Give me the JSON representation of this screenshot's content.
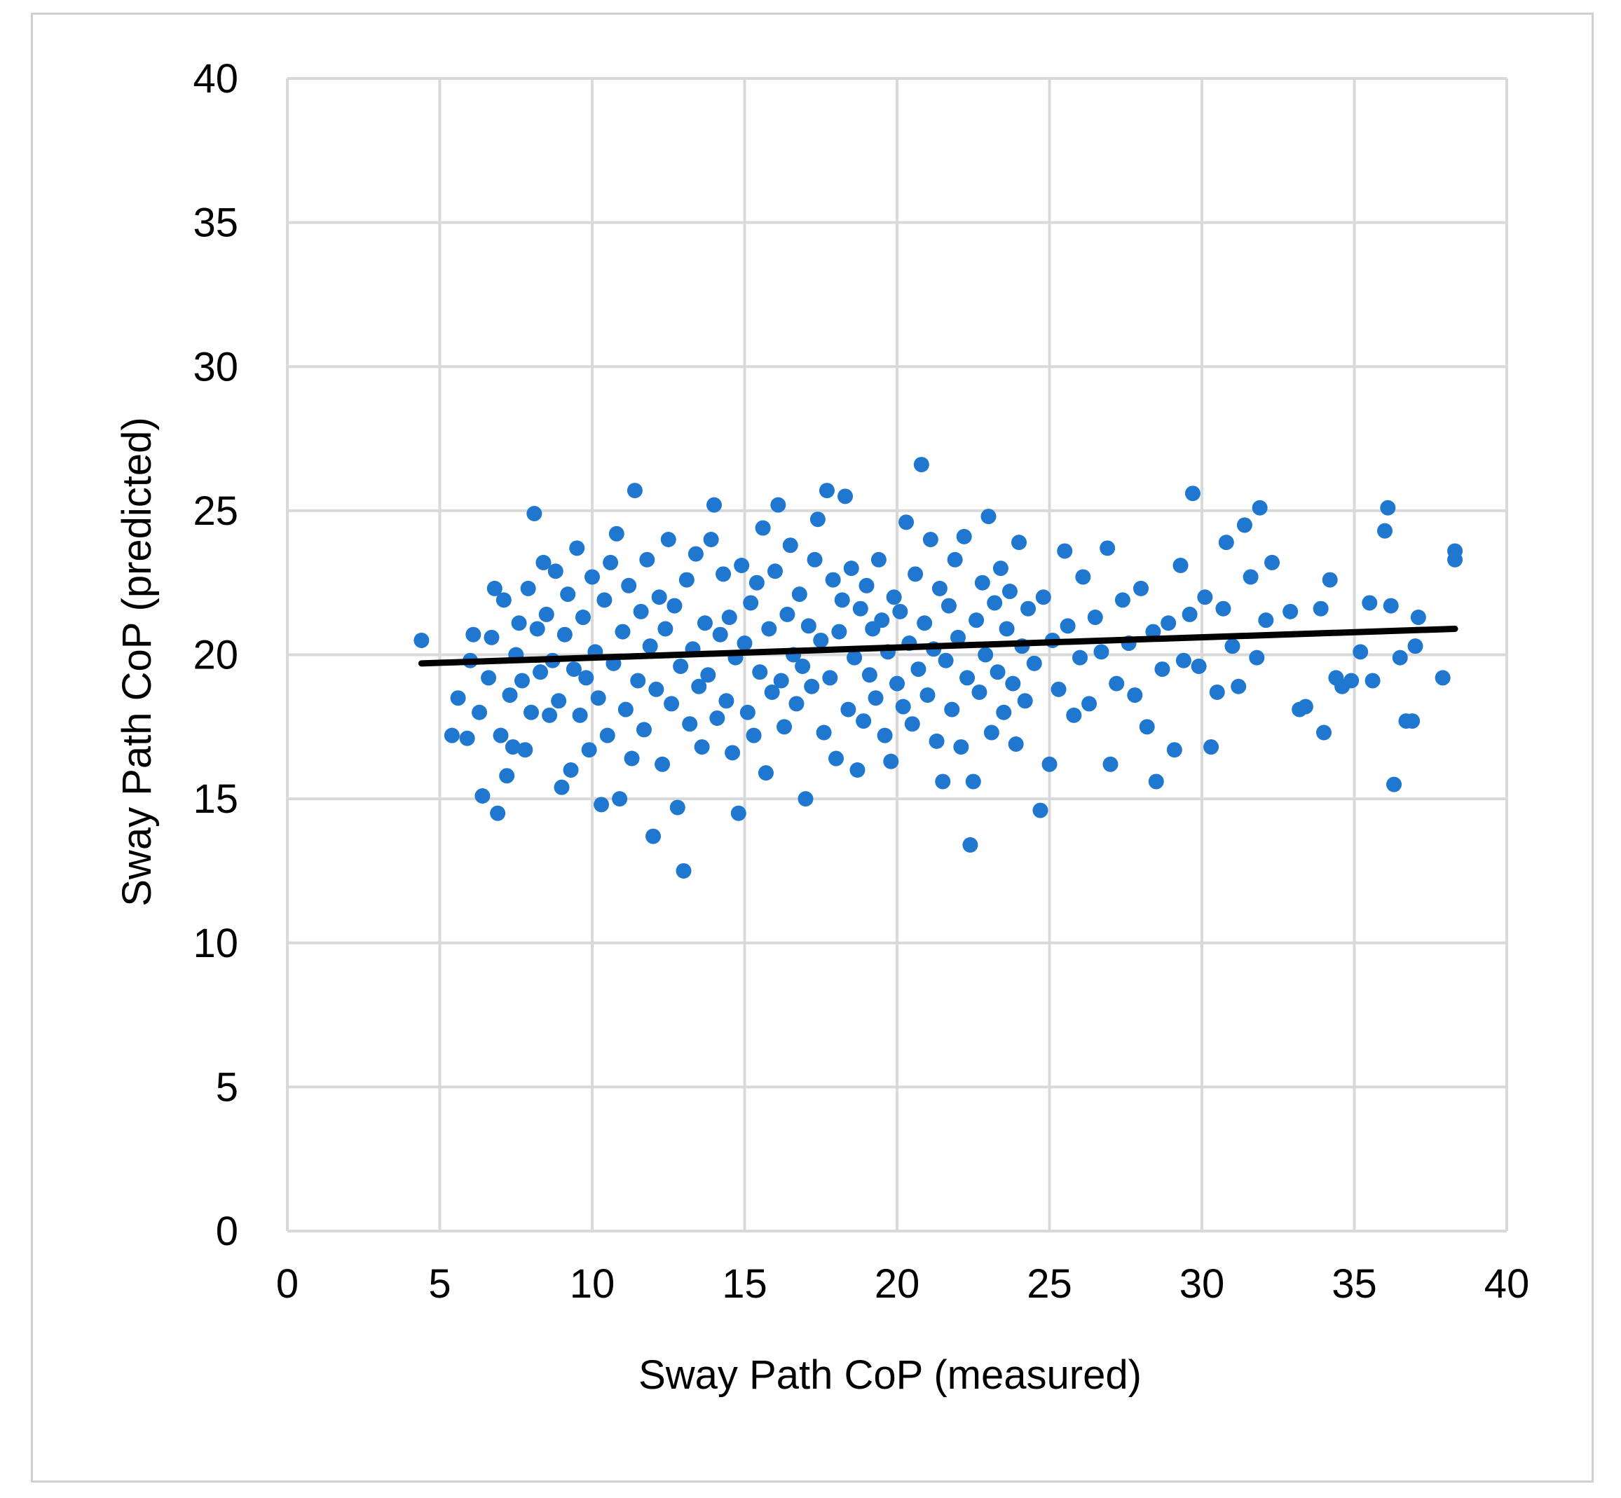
{
  "chart_data": {
    "type": "scatter",
    "title": "",
    "xlabel": "Sway Path CoP (measured)",
    "ylabel": "Sway Path CoP (predicted)",
    "xlim": [
      0,
      40
    ],
    "ylim": [
      0,
      40
    ],
    "xticks": [
      0,
      5,
      10,
      15,
      20,
      25,
      30,
      35,
      40
    ],
    "yticks": [
      0,
      5,
      10,
      15,
      20,
      25,
      30,
      35,
      40
    ],
    "grid": true,
    "legend": "none",
    "series": [
      {
        "marker_color": "#1f77d0",
        "points": [
          [
            4.4,
            20.5
          ],
          [
            5.4,
            17.2
          ],
          [
            5.6,
            18.5
          ],
          [
            5.9,
            17.1
          ],
          [
            6.0,
            19.8
          ],
          [
            6.1,
            20.7
          ],
          [
            6.3,
            18.0
          ],
          [
            6.4,
            15.1
          ],
          [
            6.6,
            19.2
          ],
          [
            6.7,
            20.6
          ],
          [
            6.8,
            22.3
          ],
          [
            6.9,
            14.5
          ],
          [
            7.0,
            17.2
          ],
          [
            7.1,
            21.9
          ],
          [
            7.2,
            15.8
          ],
          [
            7.3,
            18.6
          ],
          [
            7.4,
            16.8
          ],
          [
            7.5,
            20.0
          ],
          [
            7.6,
            21.1
          ],
          [
            7.7,
            19.1
          ],
          [
            7.8,
            16.7
          ],
          [
            7.9,
            22.3
          ],
          [
            8.0,
            18.0
          ],
          [
            8.1,
            24.9
          ],
          [
            8.2,
            20.9
          ],
          [
            8.3,
            19.4
          ],
          [
            8.4,
            23.2
          ],
          [
            8.5,
            21.4
          ],
          [
            8.6,
            17.9
          ],
          [
            8.7,
            19.8
          ],
          [
            8.8,
            22.9
          ],
          [
            8.9,
            18.4
          ],
          [
            9.0,
            15.4
          ],
          [
            9.1,
            20.7
          ],
          [
            9.2,
            22.1
          ],
          [
            9.3,
            16.0
          ],
          [
            9.4,
            19.5
          ],
          [
            9.5,
            23.7
          ],
          [
            9.6,
            17.9
          ],
          [
            9.7,
            21.3
          ],
          [
            9.8,
            19.2
          ],
          [
            9.9,
            16.7
          ],
          [
            10.0,
            22.7
          ],
          [
            10.1,
            20.1
          ],
          [
            10.2,
            18.5
          ],
          [
            10.3,
            14.8
          ],
          [
            10.4,
            21.9
          ],
          [
            10.5,
            17.2
          ],
          [
            10.6,
            23.2
          ],
          [
            10.7,
            19.7
          ],
          [
            10.8,
            24.2
          ],
          [
            10.9,
            15.0
          ],
          [
            11.0,
            20.8
          ],
          [
            11.1,
            18.1
          ],
          [
            11.2,
            22.4
          ],
          [
            11.3,
            16.4
          ],
          [
            11.4,
            25.7
          ],
          [
            11.5,
            19.1
          ],
          [
            11.6,
            21.5
          ],
          [
            11.7,
            17.4
          ],
          [
            11.8,
            23.3
          ],
          [
            11.9,
            20.3
          ],
          [
            12.0,
            13.7
          ],
          [
            12.1,
            18.8
          ],
          [
            12.2,
            22.0
          ],
          [
            12.3,
            16.2
          ],
          [
            12.4,
            20.9
          ],
          [
            12.5,
            24.0
          ],
          [
            12.6,
            18.3
          ],
          [
            12.7,
            21.7
          ],
          [
            12.8,
            14.7
          ],
          [
            12.9,
            19.6
          ],
          [
            13.0,
            12.5
          ],
          [
            13.1,
            22.6
          ],
          [
            13.2,
            17.6
          ],
          [
            13.3,
            20.2
          ],
          [
            13.4,
            23.5
          ],
          [
            13.5,
            18.9
          ],
          [
            13.6,
            16.8
          ],
          [
            13.7,
            21.1
          ],
          [
            13.8,
            19.3
          ],
          [
            13.9,
            24.0
          ],
          [
            14.0,
            25.2
          ],
          [
            14.1,
            17.8
          ],
          [
            14.2,
            20.7
          ],
          [
            14.3,
            22.8
          ],
          [
            14.4,
            18.4
          ],
          [
            14.5,
            21.3
          ],
          [
            14.6,
            16.6
          ],
          [
            14.7,
            19.9
          ],
          [
            14.8,
            14.5
          ],
          [
            14.9,
            23.1
          ],
          [
            15.0,
            20.4
          ],
          [
            15.1,
            18.0
          ],
          [
            15.2,
            21.8
          ],
          [
            15.3,
            17.2
          ],
          [
            15.4,
            22.5
          ],
          [
            15.5,
            19.4
          ],
          [
            15.6,
            24.4
          ],
          [
            15.7,
            15.9
          ],
          [
            15.8,
            20.9
          ],
          [
            15.9,
            18.7
          ],
          [
            16.0,
            22.9
          ],
          [
            16.1,
            25.2
          ],
          [
            16.2,
            19.1
          ],
          [
            16.3,
            17.5
          ],
          [
            16.4,
            21.4
          ],
          [
            16.5,
            23.8
          ],
          [
            16.6,
            20.0
          ],
          [
            16.7,
            18.3
          ],
          [
            16.8,
            22.1
          ],
          [
            16.9,
            19.6
          ],
          [
            17.0,
            15.0
          ],
          [
            17.1,
            21.0
          ],
          [
            17.2,
            18.9
          ],
          [
            17.3,
            23.3
          ],
          [
            17.4,
            24.7
          ],
          [
            17.5,
            20.5
          ],
          [
            17.6,
            17.3
          ],
          [
            17.7,
            25.7
          ],
          [
            17.8,
            19.2
          ],
          [
            17.9,
            22.6
          ],
          [
            18.0,
            16.4
          ],
          [
            18.1,
            20.8
          ],
          [
            18.2,
            21.9
          ],
          [
            18.3,
            25.5
          ],
          [
            18.4,
            18.1
          ],
          [
            18.5,
            23.0
          ],
          [
            18.6,
            19.9
          ],
          [
            18.7,
            16.0
          ],
          [
            18.8,
            21.6
          ],
          [
            18.9,
            17.7
          ],
          [
            19.0,
            22.4
          ],
          [
            19.1,
            19.3
          ],
          [
            19.2,
            20.9
          ],
          [
            19.3,
            18.5
          ],
          [
            19.4,
            23.3
          ],
          [
            19.5,
            21.2
          ],
          [
            19.6,
            17.2
          ],
          [
            19.7,
            20.1
          ],
          [
            19.8,
            16.3
          ],
          [
            19.9,
            22.0
          ],
          [
            20.0,
            19.0
          ],
          [
            20.1,
            21.5
          ],
          [
            20.2,
            18.2
          ],
          [
            20.3,
            24.6
          ],
          [
            20.4,
            20.4
          ],
          [
            20.5,
            17.6
          ],
          [
            20.6,
            22.8
          ],
          [
            20.7,
            19.5
          ],
          [
            20.8,
            26.6
          ],
          [
            20.9,
            21.1
          ],
          [
            21.0,
            18.6
          ],
          [
            21.1,
            24.0
          ],
          [
            21.2,
            20.2
          ],
          [
            21.3,
            17.0
          ],
          [
            21.4,
            22.3
          ],
          [
            21.5,
            15.6
          ],
          [
            21.6,
            19.8
          ],
          [
            21.7,
            21.7
          ],
          [
            21.8,
            18.1
          ],
          [
            21.9,
            23.3
          ],
          [
            22.0,
            20.6
          ],
          [
            22.1,
            16.8
          ],
          [
            22.2,
            24.1
          ],
          [
            22.3,
            19.2
          ],
          [
            22.4,
            13.4
          ],
          [
            22.5,
            15.6
          ],
          [
            22.6,
            21.2
          ],
          [
            22.7,
            18.7
          ],
          [
            22.8,
            22.5
          ],
          [
            22.9,
            20.0
          ],
          [
            23.0,
            24.8
          ],
          [
            23.1,
            17.3
          ],
          [
            23.2,
            21.8
          ],
          [
            23.3,
            19.4
          ],
          [
            23.4,
            23.0
          ],
          [
            23.5,
            18.0
          ],
          [
            23.6,
            20.9
          ],
          [
            23.7,
            22.2
          ],
          [
            23.8,
            19.0
          ],
          [
            23.9,
            16.9
          ],
          [
            24.0,
            23.9
          ],
          [
            24.1,
            20.3
          ],
          [
            24.2,
            18.4
          ],
          [
            24.3,
            21.6
          ],
          [
            24.5,
            19.7
          ],
          [
            24.7,
            14.6
          ],
          [
            24.8,
            22.0
          ],
          [
            25.0,
            16.2
          ],
          [
            25.1,
            20.5
          ],
          [
            25.3,
            18.8
          ],
          [
            25.5,
            23.6
          ],
          [
            25.6,
            21.0
          ],
          [
            25.8,
            17.9
          ],
          [
            26.0,
            19.9
          ],
          [
            26.1,
            22.7
          ],
          [
            26.3,
            18.3
          ],
          [
            26.5,
            21.3
          ],
          [
            26.7,
            20.1
          ],
          [
            26.9,
            23.7
          ],
          [
            27.0,
            16.2
          ],
          [
            27.2,
            19.0
          ],
          [
            27.4,
            21.9
          ],
          [
            27.6,
            20.4
          ],
          [
            27.8,
            18.6
          ],
          [
            28.0,
            22.3
          ],
          [
            28.2,
            17.5
          ],
          [
            28.4,
            20.8
          ],
          [
            28.5,
            15.6
          ],
          [
            28.7,
            19.5
          ],
          [
            28.9,
            21.1
          ],
          [
            29.1,
            16.7
          ],
          [
            29.3,
            23.1
          ],
          [
            29.4,
            19.8
          ],
          [
            29.6,
            21.4
          ],
          [
            29.7,
            25.6
          ],
          [
            29.9,
            19.6
          ],
          [
            30.1,
            22.0
          ],
          [
            30.3,
            16.8
          ],
          [
            30.5,
            18.7
          ],
          [
            30.7,
            21.6
          ],
          [
            30.8,
            23.9
          ],
          [
            31.0,
            20.3
          ],
          [
            31.2,
            18.9
          ],
          [
            31.4,
            24.5
          ],
          [
            31.6,
            22.7
          ],
          [
            31.8,
            19.9
          ],
          [
            31.9,
            25.1
          ],
          [
            32.1,
            21.2
          ],
          [
            32.3,
            23.2
          ],
          [
            32.9,
            21.5
          ],
          [
            33.2,
            18.1
          ],
          [
            33.4,
            18.2
          ],
          [
            33.9,
            21.6
          ],
          [
            34.0,
            17.3
          ],
          [
            34.2,
            22.6
          ],
          [
            34.4,
            19.2
          ],
          [
            34.6,
            18.9
          ],
          [
            34.9,
            19.1
          ],
          [
            35.2,
            20.1
          ],
          [
            35.5,
            21.8
          ],
          [
            35.6,
            19.1
          ],
          [
            36.0,
            24.3
          ],
          [
            36.1,
            25.1
          ],
          [
            36.2,
            21.7
          ],
          [
            36.3,
            15.5
          ],
          [
            36.5,
            19.9
          ],
          [
            36.7,
            17.7
          ],
          [
            36.9,
            17.7
          ],
          [
            37.0,
            20.3
          ],
          [
            37.1,
            21.3
          ],
          [
            37.9,
            19.2
          ],
          [
            38.3,
            23.6
          ],
          [
            38.3,
            23.3
          ]
        ]
      }
    ],
    "trendline": {
      "type": "linear",
      "color": "#000000",
      "points": [
        [
          4.4,
          19.7
        ],
        [
          38.3,
          20.9
        ]
      ]
    }
  }
}
